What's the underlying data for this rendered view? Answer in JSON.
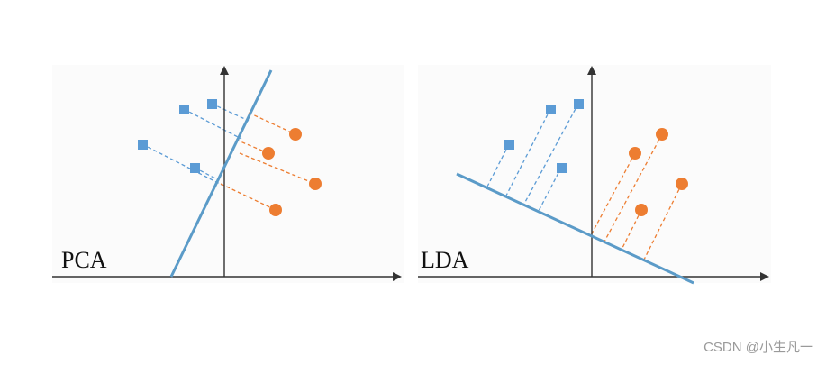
{
  "panels": [
    {
      "label": "PCA"
    },
    {
      "label": "LDA"
    }
  ],
  "colors": {
    "projection_line": "#5b9bc8",
    "class_square": "#5b9bd5",
    "class_circle": "#ed7d31",
    "axis": "#333333",
    "panel_bg": "#fbfbfb"
  },
  "icons": {
    "square": "blue-square-marker",
    "circle": "orange-circle-marker"
  },
  "watermark": "CSDN @小生凡一"
}
